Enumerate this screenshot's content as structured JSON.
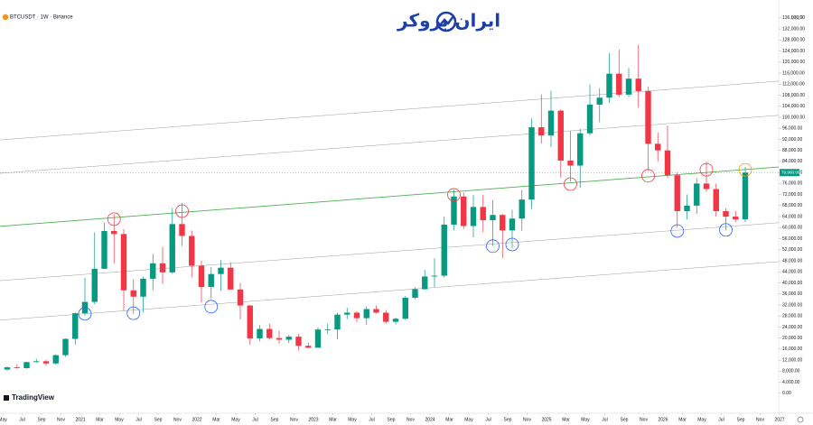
{
  "chart_data": {
    "type": "candlestick",
    "symbol_label": "BTCUSDT · 1W · Binance",
    "logo_text": "ایران بروکر",
    "brand": "TradingView",
    "currency": "USDT",
    "last_price_label": "79,960.00",
    "up_color": "#089981",
    "down_color": "#f23645",
    "ylim": [
      -3000,
      142500
    ],
    "yticks": [
      {
        "value": 0,
        "label": "0.00"
      },
      {
        "value": 4000,
        "label": "4,000.00"
      },
      {
        "value": 8000,
        "label": "8,000.00"
      },
      {
        "value": 12000,
        "label": "12,000.00"
      },
      {
        "value": 16000,
        "label": "16,000.00"
      },
      {
        "value": 20000,
        "label": "20,000.00"
      },
      {
        "value": 24000,
        "label": "24,000.00"
      },
      {
        "value": 28000,
        "label": "28,000.00"
      },
      {
        "value": 32000,
        "label": "32,000.00"
      },
      {
        "value": 36000,
        "label": "36,000.00"
      },
      {
        "value": 40000,
        "label": "40,000.00"
      },
      {
        "value": 44000,
        "label": "44,000.00"
      },
      {
        "value": 48000,
        "label": "48,000.00"
      },
      {
        "value": 52000,
        "label": "52,000.00"
      },
      {
        "value": 56000,
        "label": "56,000.00"
      },
      {
        "value": 60000,
        "label": "60,000.00"
      },
      {
        "value": 64000,
        "label": "64,000.00"
      },
      {
        "value": 68000,
        "label": "68,000.00"
      },
      {
        "value": 72000,
        "label": "72,000.00"
      },
      {
        "value": 76000,
        "label": "76,000.00"
      },
      {
        "value": 80000,
        "label": "80,000.00"
      },
      {
        "value": 84000,
        "label": "84,000.00"
      },
      {
        "value": 88000,
        "label": "88,000.00"
      },
      {
        "value": 92000,
        "label": "92,000.00"
      },
      {
        "value": 96000,
        "label": "96,000.00"
      },
      {
        "value": 100000,
        "label": "100,000.00"
      },
      {
        "value": 104000,
        "label": "104,000.00"
      },
      {
        "value": 108000,
        "label": "108,000.00"
      },
      {
        "value": 112000,
        "label": "112,000.00"
      },
      {
        "value": 116000,
        "label": "116,000.00"
      },
      {
        "value": 120000,
        "label": "120,000.00"
      },
      {
        "value": 124000,
        "label": "124,000.00"
      },
      {
        "value": 128000,
        "label": "128,000.00"
      },
      {
        "value": 132000,
        "label": "132,000.00"
      },
      {
        "value": 136000,
        "label": "136,000.00"
      }
    ],
    "xticks": [
      {
        "value": "2020-05",
        "label": "May"
      },
      {
        "value": "2020-07",
        "label": "Jul"
      },
      {
        "value": "2020-09",
        "label": "Sep"
      },
      {
        "value": "2020-11",
        "label": "Nov"
      },
      {
        "value": "2021-01",
        "label": "2021"
      },
      {
        "value": "2021-03",
        "label": "Mar"
      },
      {
        "value": "2021-05",
        "label": "May"
      },
      {
        "value": "2021-07",
        "label": "Jul"
      },
      {
        "value": "2021-09",
        "label": "Sep"
      },
      {
        "value": "2021-11",
        "label": "Nov"
      },
      {
        "value": "2022-01",
        "label": "2022"
      },
      {
        "value": "2022-03",
        "label": "Mar"
      },
      {
        "value": "2022-05",
        "label": "May"
      },
      {
        "value": "2022-07",
        "label": "Jul"
      },
      {
        "value": "2022-09",
        "label": "Sep"
      },
      {
        "value": "2022-11",
        "label": "Nov"
      },
      {
        "value": "2023-01",
        "label": "2023"
      },
      {
        "value": "2023-03",
        "label": "Mar"
      },
      {
        "value": "2023-05",
        "label": "May"
      },
      {
        "value": "2023-07",
        "label": "Jul"
      },
      {
        "value": "2023-09",
        "label": "Sep"
      },
      {
        "value": "2023-11",
        "label": "Nov"
      },
      {
        "value": "2024-01",
        "label": "2024"
      },
      {
        "value": "2024-03",
        "label": "Mar"
      },
      {
        "value": "2024-05",
        "label": "May"
      },
      {
        "value": "2024-07",
        "label": "Jul"
      },
      {
        "value": "2024-09",
        "label": "Sep"
      },
      {
        "value": "2024-11",
        "label": "Nov"
      },
      {
        "value": "2025-01",
        "label": "2025"
      },
      {
        "value": "2025-03",
        "label": "Mar"
      },
      {
        "value": "2025-05",
        "label": "May"
      },
      {
        "value": "2025-07",
        "label": "Jul"
      },
      {
        "value": "2025-09",
        "label": "Sep"
      },
      {
        "value": "2025-11",
        "label": "Nov"
      },
      {
        "value": "2026-01",
        "label": "2026"
      },
      {
        "value": "2026-03",
        "label": "Mar"
      },
      {
        "value": "2026-05",
        "label": "May"
      },
      {
        "value": "2026-07",
        "label": "Jul"
      },
      {
        "value": "2026-09",
        "label": "Sep"
      },
      {
        "value": "2026-11",
        "label": "Nov"
      },
      {
        "value": "2027-01",
        "label": "2027"
      }
    ],
    "x": [
      "2020-05",
      "2020-06",
      "2020-07",
      "2020-08",
      "2020-09",
      "2020-10",
      "2020-11",
      "2020-12",
      "2021-01",
      "2021-02",
      "2021-03",
      "2021-04",
      "2021-05",
      "2021-06",
      "2021-07",
      "2021-08",
      "2021-09",
      "2021-10",
      "2021-11",
      "2021-12",
      "2022-01",
      "2022-02",
      "2022-03",
      "2022-04",
      "2022-05",
      "2022-06",
      "2022-07",
      "2022-08",
      "2022-09",
      "2022-10",
      "2022-11",
      "2022-12",
      "2023-01",
      "2023-02",
      "2023-03",
      "2023-04",
      "2023-05",
      "2023-06",
      "2023-07",
      "2023-08",
      "2023-09",
      "2023-10",
      "2023-11",
      "2023-12",
      "2024-01",
      "2024-02",
      "2024-03",
      "2024-04",
      "2024-05",
      "2024-06",
      "2024-07",
      "2024-08",
      "2024-09",
      "2024-10",
      "2024-11",
      "2024-12",
      "2025-01",
      "2025-02",
      "2025-03",
      "2025-04",
      "2025-05",
      "2025-06",
      "2025-07",
      "2025-08",
      "2025-09",
      "2025-10",
      "2025-11",
      "2025-12",
      "2026-01",
      "2026-02",
      "2026-03",
      "2026-04",
      "2026-05",
      "2026-06",
      "2026-07",
      "2026-08",
      "2026-09"
    ],
    "open": [
      8600,
      9400,
      9100,
      11300,
      11600,
      10800,
      13800,
      19700,
      29000,
      33100,
      45100,
      58800,
      57700,
      37300,
      35000,
      41500,
      47100,
      43800,
      61300,
      57000,
      46200,
      38500,
      43200,
      45500,
      37600,
      31800,
      19900,
      23300,
      20000,
      19400,
      20500,
      17200,
      16500,
      23100,
      23100,
      28500,
      29200,
      27200,
      30500,
      29200,
      25900,
      27000,
      34600,
      37700,
      42300,
      42600,
      61100,
      71300,
      60600,
      67500,
      62700,
      64600,
      59000,
      63300,
      70200,
      96400,
      93400,
      102400,
      84300,
      82500,
      94200,
      104600,
      107100,
      115800,
      108200,
      114000,
      109500,
      90400,
      88000,
      79000,
      66000,
      68000,
      76000,
      74000,
      66000,
      64000,
      63000
    ],
    "high": [
      9700,
      10400,
      11400,
      12500,
      12100,
      14100,
      19900,
      29300,
      41900,
      58300,
      61800,
      64800,
      59500,
      41300,
      42300,
      50500,
      52900,
      67000,
      69000,
      59000,
      48000,
      45800,
      48200,
      47400,
      40000,
      31900,
      24700,
      25200,
      22700,
      21100,
      21500,
      18400,
      23900,
      25300,
      29200,
      31000,
      29800,
      31400,
      31800,
      30200,
      27500,
      35200,
      38400,
      44700,
      48900,
      64000,
      73700,
      72700,
      71900,
      71900,
      70000,
      65000,
      66500,
      73600,
      99600,
      108300,
      109600,
      102800,
      95000,
      95800,
      111900,
      110500,
      123200,
      124500,
      117900,
      126200,
      111200,
      94500,
      97000,
      80000,
      72000,
      78000,
      84000,
      76000,
      67000,
      66000,
      82000
    ],
    "low": [
      8100,
      8900,
      8900,
      11000,
      9900,
      10400,
      13200,
      17600,
      28100,
      32300,
      45000,
      47000,
      30000,
      28800,
      29300,
      37300,
      39600,
      43300,
      53300,
      42000,
      32900,
      34300,
      37100,
      37600,
      26700,
      17600,
      18800,
      19500,
      18100,
      18200,
      15500,
      16300,
      16500,
      21400,
      19500,
      26900,
      25800,
      24800,
      28900,
      25200,
      24900,
      26600,
      34100,
      37600,
      38500,
      41900,
      59000,
      59600,
      56500,
      58400,
      53500,
      49000,
      52500,
      58900,
      66800,
      90500,
      89200,
      78200,
      76600,
      74400,
      93400,
      98200,
      105200,
      107300,
      107300,
      103500,
      80600,
      84000,
      78000,
      60000,
      63000,
      65000,
      73000,
      64000,
      59000,
      62000,
      62000
    ],
    "close": [
      9400,
      9100,
      11300,
      11600,
      10800,
      13800,
      19700,
      29000,
      33100,
      45100,
      58800,
      57700,
      37300,
      35000,
      41500,
      47100,
      43800,
      61300,
      57000,
      46200,
      38500,
      43200,
      45500,
      37600,
      31800,
      19900,
      23300,
      20000,
      19400,
      20500,
      17200,
      16500,
      23100,
      23100,
      28500,
      29200,
      27200,
      30500,
      29200,
      25900,
      27000,
      34600,
      37700,
      42300,
      42600,
      61100,
      71300,
      60600,
      67500,
      62700,
      64600,
      59000,
      63300,
      70200,
      96400,
      93400,
      102400,
      84300,
      82500,
      94200,
      104600,
      107100,
      115800,
      108200,
      114000,
      109500,
      90400,
      88000,
      79000,
      66000,
      68000,
      76000,
      74000,
      66000,
      64000,
      63000,
      79960
    ],
    "trend_lines": [
      {
        "color": "#9e9e9e",
        "start": 91800,
        "end": 113100
      },
      {
        "color": "#9e9e9e",
        "start": 79700,
        "end": 100700
      },
      {
        "color": "#4caf50",
        "start": 60500,
        "end": 82000
      },
      {
        "color": "#9e9e9e",
        "start": 40800,
        "end": 61800
      },
      {
        "color": "#9e9e9e",
        "start": 26500,
        "end": 47700
      }
    ],
    "circles": [
      {
        "x": "2021-04",
        "price": 63100,
        "color": "#f23645"
      },
      {
        "x": "2021-11",
        "price": 66000,
        "color": "#f23645"
      },
      {
        "x": "2024-03",
        "price": 71900,
        "color": "#f23645"
      },
      {
        "x": "2025-03",
        "price": 75800,
        "color": "#f23645"
      },
      {
        "x": "2025-11",
        "price": 78800,
        "color": "#f23645"
      },
      {
        "x": "2026-05",
        "price": 81000,
        "color": "#f23645"
      },
      {
        "x": "2026-09",
        "price": 81000,
        "color": "#ff9800"
      },
      {
        "x": "2021-01",
        "price": 28800,
        "color": "#2962ff"
      },
      {
        "x": "2021-06",
        "price": 29000,
        "color": "#2962ff"
      },
      {
        "x": "2022-02",
        "price": 31400,
        "color": "#2962ff"
      },
      {
        "x": "2024-07",
        "price": 53300,
        "color": "#2962ff"
      },
      {
        "x": "2024-09",
        "price": 53900,
        "color": "#2962ff"
      },
      {
        "x": "2026-02",
        "price": 58800,
        "color": "#2962ff"
      },
      {
        "x": "2026-07",
        "price": 59200,
        "color": "#2962ff"
      }
    ]
  }
}
